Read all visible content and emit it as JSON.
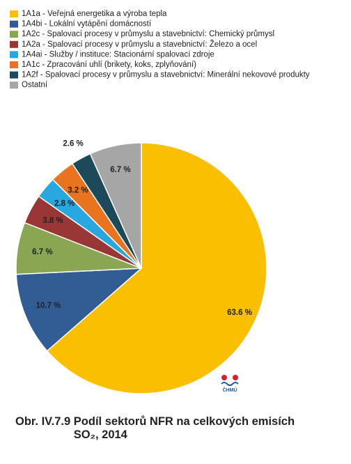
{
  "chart_data": {
    "type": "pie",
    "categories": [
      "1A1a - Veřejná energetika a výroba tepla",
      "1A4bi - Lokální vytápění domácností",
      "1A2c - Spalovací procesy v průmyslu a stavebnictví: Chemický průmysl",
      "1A2a - Spalovací procesy v průmyslu a stavebnictví: Železo a ocel",
      "1A4ai - Služby / instituce: Stacionární spalovací zdroje",
      "1A1c - Zpracování uhlí (brikety, koks, zplyňování)",
      "1A2f - Spalovací procesy v průmyslu a stavebnictví: Minerální nekovové produkty",
      "Ostatní"
    ],
    "values": [
      63.6,
      10.7,
      6.7,
      3.8,
      2.8,
      3.2,
      2.6,
      6.7
    ],
    "value_labels": [
      "63.6 %",
      "10.7 %",
      "6.7 %",
      "3.8 %",
      "2.8 %",
      "3.2 %",
      "2.6 %",
      "6.7 %"
    ],
    "colors": [
      "#f9bf00",
      "#325c94",
      "#8aa652",
      "#983735",
      "#29a8df",
      "#e9731f",
      "#1c4a5a",
      "#a6a6a6"
    ],
    "legend_position": "top-left",
    "figure_label": "Obr. IV.7.9",
    "title": "Podíl sektorů NFR na celkových emisích SO₂, 2014",
    "logo_text": "ČHMÚ"
  }
}
